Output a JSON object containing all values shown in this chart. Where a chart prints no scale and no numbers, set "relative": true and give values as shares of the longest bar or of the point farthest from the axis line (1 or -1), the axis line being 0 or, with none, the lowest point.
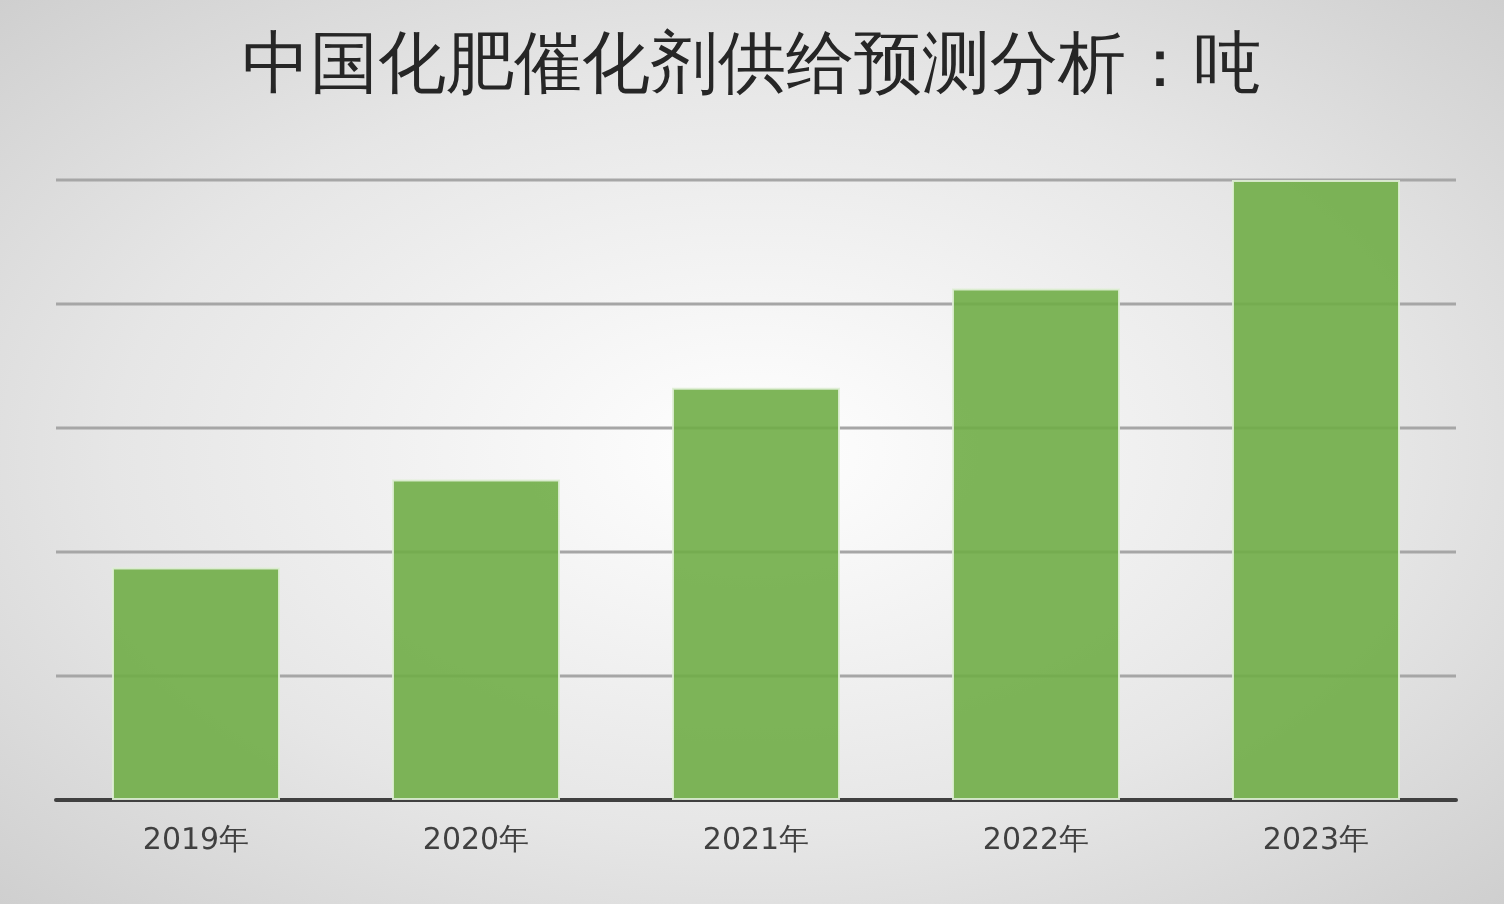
{
  "chart_data": {
    "type": "bar",
    "title": "中国化肥催化剂供给预测分析：吨",
    "categories": [
      "2019年",
      "2020年",
      "2021年",
      "2022年",
      "2023年"
    ],
    "values": [
      0.375,
      0.517,
      0.665,
      0.825,
      1
    ],
    "color": "#70ad47",
    "relative": true,
    "grid": "y"
  }
}
